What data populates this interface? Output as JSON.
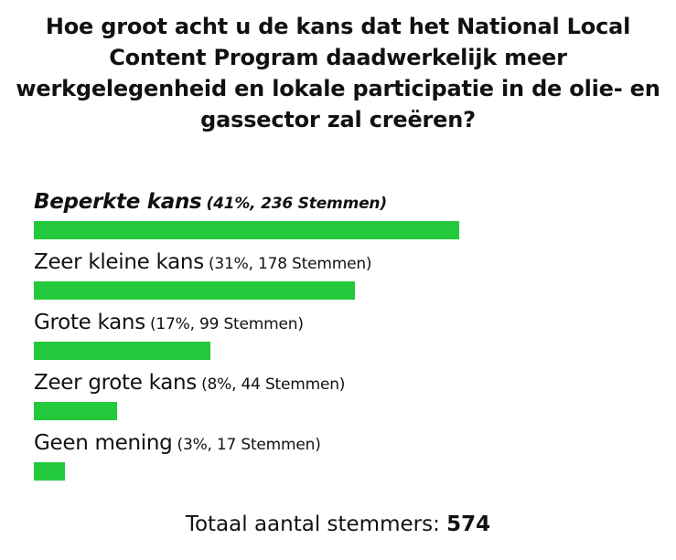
{
  "poll": {
    "question": "Hoe groot acht u de kans dat het National Local Content Program daadwerkelijk meer werkgelegenheid en lokale participatie in de olie- en gassector zal creëren?",
    "total_label": "Totaal aantal stemmers:",
    "total_value": "574"
  },
  "colors": {
    "bar": "#22c93a",
    "text": "#111111",
    "background": "#ffffff"
  },
  "chart_data": {
    "type": "bar",
    "orientation": "horizontal",
    "title": "Hoe groot acht u de kans dat het National Local Content Program daadwerkelijk meer werkgelegenheid en lokale participatie in de olie- en gassector zal creëren?",
    "categories": [
      "Beperkte kans",
      "Zeer kleine kans",
      "Grote kans",
      "Zeer grote kans",
      "Geen mening"
    ],
    "values": [
      41,
      31,
      17,
      8,
      3
    ],
    "value_unit": "percent",
    "votes": [
      236,
      178,
      99,
      44,
      17
    ],
    "stats_labels": [
      "(41%, 236 Stemmen)",
      "(31%, 178 Stemmen)",
      "(17%, 99 Stemmen)",
      "(8%, 44 Stemmen)",
      "(3%, 17 Stemmen)"
    ],
    "highlighted_category": "Beperkte kans",
    "xlim": [
      0,
      60
    ],
    "grid": false,
    "legend": "none"
  }
}
